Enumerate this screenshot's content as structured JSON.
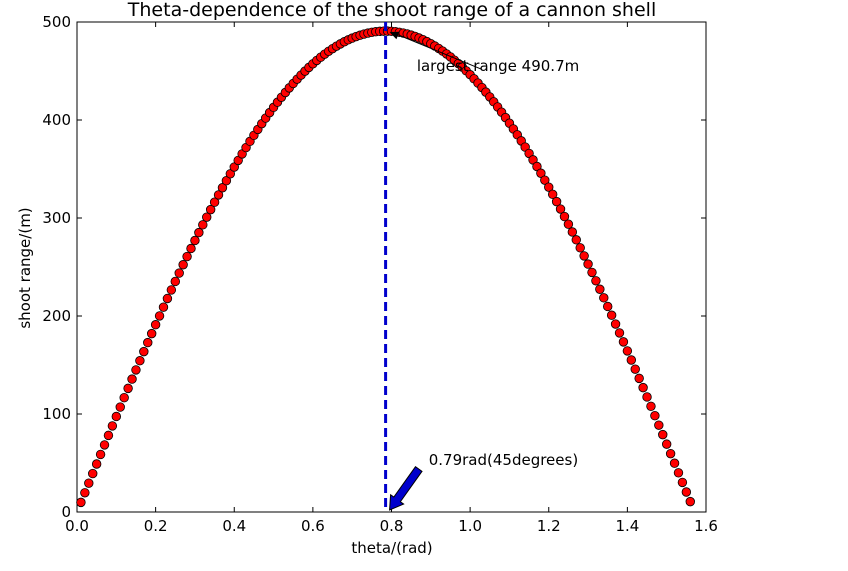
{
  "chart_data": {
    "type": "scatter",
    "title": "Theta-dependence of the shoot range of a cannon shell",
    "xlabel": "theta/(rad)",
    "ylabel": "shoot range/(m)",
    "xlim": [
      0.0,
      1.6
    ],
    "ylim": [
      0,
      500
    ],
    "xticks": [
      "0.0",
      "0.2",
      "0.4",
      "0.6",
      "0.8",
      "1.0",
      "1.2",
      "1.4",
      "1.6"
    ],
    "yticks": [
      "0",
      "100",
      "200",
      "300",
      "400",
      "500"
    ],
    "grid": false,
    "series": [
      {
        "marker": "circle",
        "color": "#ff0000",
        "edge_color": "#000000",
        "x_start": 0.01,
        "x_end": 1.56,
        "x_step": 0.01,
        "max_range": 490.7,
        "formula": "max_range * sin(2 * theta)"
      }
    ],
    "vline": {
      "x": 0.785,
      "color": "#0000cc",
      "style": "dashed"
    },
    "annotations": [
      {
        "text": "largest range 490.7m",
        "point": [
          0.79,
          490.7
        ],
        "text_pos": [
          0.9,
          447
        ]
      },
      {
        "text": "0.79rad(45degrees)",
        "point": [
          0.79,
          0
        ],
        "text_pos": [
          0.91,
          50
        ],
        "arrow_color": "#0000cc"
      }
    ]
  }
}
